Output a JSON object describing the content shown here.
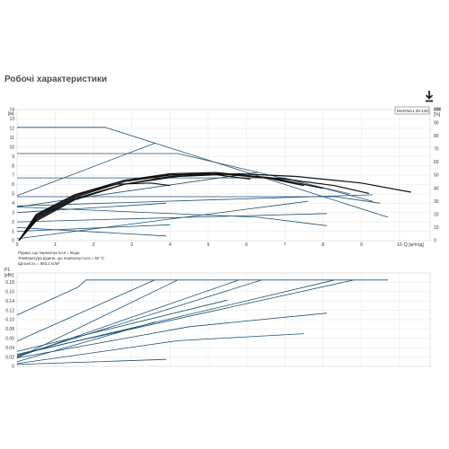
{
  "page": {
    "title": "Робочі характеристики"
  },
  "toolbar": {
    "download_icon": "download-icon"
  },
  "chart_data": [
    {
      "type": "line",
      "model_label": "MAGNA1 25-120",
      "y_unit": "[м]",
      "y_unit_right": "[%]",
      "y_axis_right_label": "eta",
      "x_label": "Q [м³/год]",
      "xlim": [
        0,
        10.8
      ],
      "ylim": [
        0,
        14
      ],
      "x_ticks": [
        0,
        1,
        2,
        3,
        4,
        5,
        6,
        7,
        8,
        9,
        10
      ],
      "y_ticks": [
        0,
        1,
        2,
        3,
        4,
        5,
        6,
        7,
        8,
        9,
        10,
        11,
        12,
        13,
        14
      ],
      "y_ticks_right": [
        0,
        10,
        20,
        30,
        40,
        50,
        60,
        70,
        80,
        90,
        100
      ],
      "notes": [
        "Рідина, що перекачується = Вода",
        "Температура рідини, що перекачується = 60 °C",
        "Щільність = 983.2 кг/м³"
      ],
      "series": [
        {
          "kind": "max-curve",
          "points": [
            [
              0,
              12.1
            ],
            [
              2.3,
              12.1
            ],
            [
              9.7,
              2.5
            ]
          ]
        },
        {
          "kind": "const-pressure",
          "points": [
            [
              0,
              9.3
            ],
            [
              4.2,
              9.3
            ],
            [
              8.7,
              5.0
            ]
          ]
        },
        {
          "kind": "const-pressure",
          "points": [
            [
              0,
              6.7
            ],
            [
              7.0,
              6.7
            ],
            [
              9.3,
              4.2
            ]
          ]
        },
        {
          "kind": "const-pressure",
          "points": [
            [
              0,
              4.7
            ],
            [
              8.3,
              4.7
            ],
            [
              9.5,
              4.0
            ]
          ]
        },
        {
          "kind": "prop-pressure",
          "points": [
            [
              0,
              4.8
            ],
            [
              3.6,
              10.4
            ]
          ]
        },
        {
          "kind": "prop-pressure",
          "points": [
            [
              0,
              3.6
            ],
            [
              6.3,
              7.3
            ]
          ]
        },
        {
          "kind": "prop-pressure",
          "points": [
            [
              0,
              3.7
            ],
            [
              9.3,
              4.9
            ]
          ]
        },
        {
          "kind": "system-line",
          "points": [
            [
              0,
              3.0
            ],
            [
              3.9,
              4.0
            ]
          ]
        },
        {
          "kind": "system-line",
          "points": [
            [
              0,
              2.0
            ],
            [
              8.1,
              2.9
            ]
          ]
        },
        {
          "kind": "system-line",
          "points": [
            [
              0,
              1.0
            ],
            [
              4.0,
              1.7
            ]
          ]
        },
        {
          "kind": "system-line",
          "points": [
            [
              0,
              0.2
            ],
            [
              7.6,
              4.2
            ]
          ]
        },
        {
          "kind": "low-curve",
          "points": [
            [
              0,
              1.4
            ],
            [
              3.9,
              0.5
            ]
          ]
        },
        {
          "kind": "low-curve",
          "points": [
            [
              0,
              3.6
            ],
            [
              6.3,
              2.5
            ],
            [
              8.1,
              1.6
            ]
          ]
        },
        {
          "kind": "efficiency",
          "points": [
            [
              0.05,
              0.2
            ],
            [
              0.5,
              15
            ],
            [
              1.5,
              31
            ],
            [
              2.8,
              43
            ],
            [
              4.2,
              49
            ],
            [
              5.8,
              51
            ],
            [
              7.3,
              49
            ],
            [
              9.0,
              44
            ],
            [
              10.3,
              37
            ]
          ]
        },
        {
          "kind": "efficiency",
          "points": [
            [
              0.05,
              0.2
            ],
            [
              0.5,
              16
            ],
            [
              1.5,
              32
            ],
            [
              2.8,
              43
            ],
            [
              4.0,
              49
            ],
            [
              5.5,
              51
            ],
            [
              7.0,
              47
            ],
            [
              8.3,
              42
            ],
            [
              9.2,
              36
            ]
          ]
        },
        {
          "kind": "efficiency",
          "points": [
            [
              0.05,
              0.2
            ],
            [
              0.5,
              17
            ],
            [
              1.5,
              33
            ],
            [
              2.8,
              45
            ],
            [
              4.0,
              50
            ],
            [
              5.3,
              51
            ],
            [
              6.8,
              47
            ],
            [
              8.0,
              40
            ]
          ]
        },
        {
          "kind": "efficiency",
          "points": [
            [
              0.05,
              0.2
            ],
            [
              0.5,
              18
            ],
            [
              1.5,
              34
            ],
            [
              2.8,
              46
            ],
            [
              4.0,
              51
            ],
            [
              5.2,
              52
            ],
            [
              6.5,
              48
            ],
            [
              7.5,
              42
            ]
          ]
        },
        {
          "kind": "efficiency",
          "points": [
            [
              0.05,
              0.2
            ],
            [
              0.5,
              19
            ],
            [
              1.5,
              35
            ],
            [
              2.8,
              46
            ],
            [
              3.9,
              50
            ],
            [
              5.0,
              51
            ],
            [
              6.1,
              47
            ]
          ]
        },
        {
          "kind": "efficiency",
          "points": [
            [
              0.05,
              0.2
            ],
            [
              0.5,
              20
            ],
            [
              1.5,
              35
            ],
            [
              2.6,
              43
            ],
            [
              3.5,
              44
            ],
            [
              4.0,
              42
            ]
          ]
        }
      ]
    },
    {
      "type": "line",
      "y_label": "P1",
      "y_unit": "[кВт]",
      "xlim": [
        0,
        10.8
      ],
      "ylim": [
        0,
        0.2
      ],
      "y_ticks": [
        0,
        0.02,
        0.04,
        0.06,
        0.08,
        0.1,
        0.12,
        0.14,
        0.16,
        0.18
      ],
      "y_tick_labels": [
        "0",
        "0.02",
        "0.04",
        "0.06",
        "0.08",
        "0.10",
        "0.12",
        "0.14",
        "0.16",
        "0.18"
      ],
      "series": [
        {
          "kind": "power",
          "points": [
            [
              0,
              0.11
            ],
            [
              1.6,
              0.17
            ],
            [
              1.8,
              0.185
            ],
            [
              9.7,
              0.185
            ]
          ]
        },
        {
          "kind": "power",
          "points": [
            [
              0,
              0.054
            ],
            [
              3.6,
              0.185
            ]
          ]
        },
        {
          "kind": "power",
          "points": [
            [
              0,
              0.018
            ],
            [
              4.2,
              0.185
            ]
          ]
        },
        {
          "kind": "power",
          "points": [
            [
              0,
              0.02
            ],
            [
              5.8,
              0.185
            ]
          ]
        },
        {
          "kind": "power",
          "points": [
            [
              0,
              0.022
            ],
            [
              6.4,
              0.185
            ]
          ]
        },
        {
          "kind": "power",
          "points": [
            [
              0,
              0.024
            ],
            [
              8.3,
              0.185
            ]
          ]
        },
        {
          "kind": "power",
          "points": [
            [
              0,
              0.026
            ],
            [
              8.8,
              0.185
            ]
          ]
        },
        {
          "kind": "power",
          "points": [
            [
              0,
              0.032
            ],
            [
              5.5,
              0.142
            ]
          ]
        },
        {
          "kind": "power",
          "points": [
            [
              0,
              0.01
            ],
            [
              3.6,
              0.095
            ]
          ]
        },
        {
          "kind": "power",
          "points": [
            [
              0,
              0.018
            ],
            [
              4.5,
              0.085
            ],
            [
              8.1,
              0.114
            ]
          ]
        },
        {
          "kind": "power",
          "points": [
            [
              0,
              0.006
            ],
            [
              4.2,
              0.055
            ],
            [
              7.5,
              0.07
            ]
          ]
        },
        {
          "kind": "power",
          "points": [
            [
              0,
              0.004
            ],
            [
              3.9,
              0.015
            ]
          ]
        }
      ]
    }
  ]
}
